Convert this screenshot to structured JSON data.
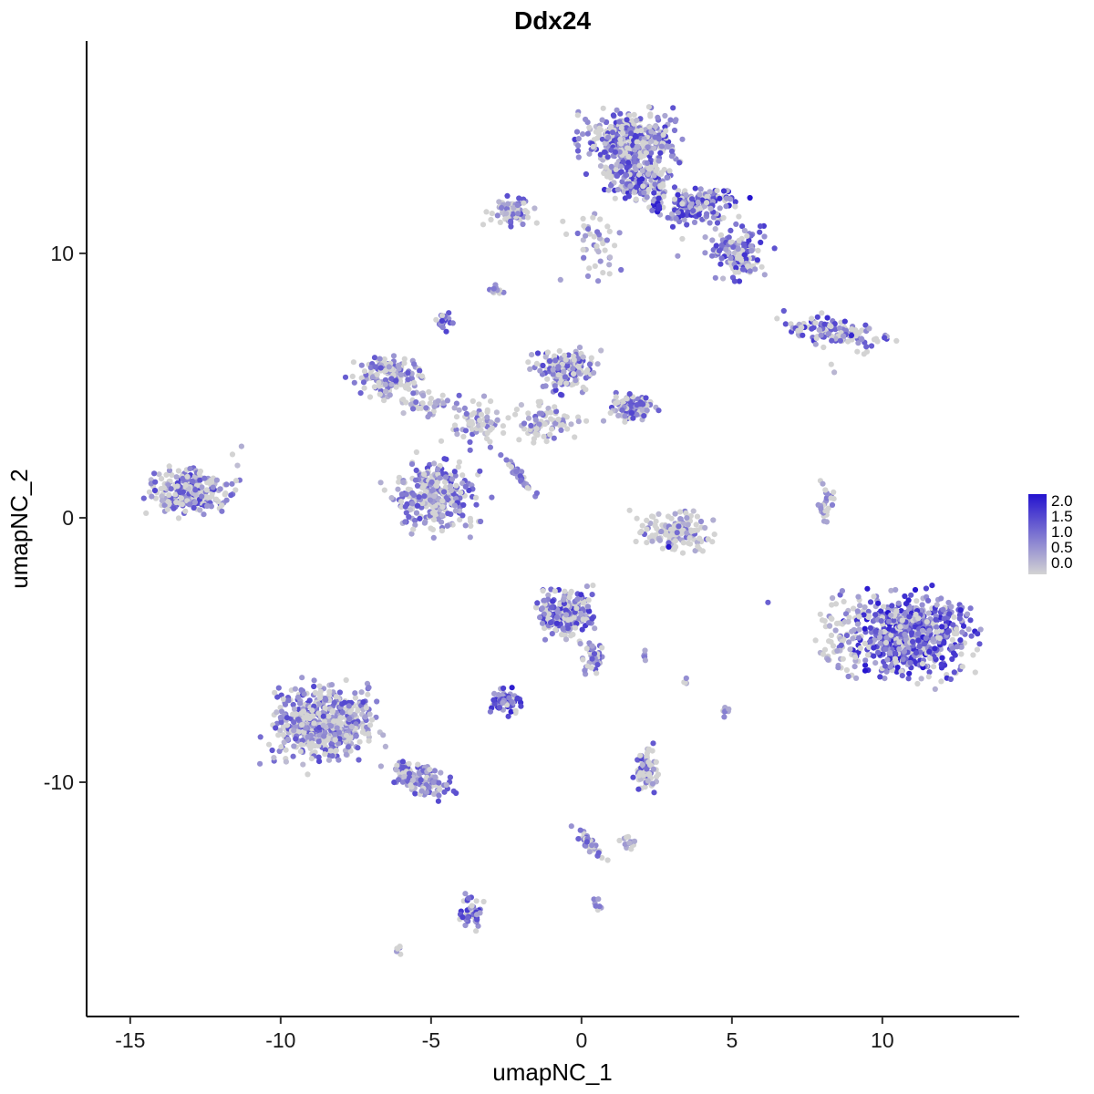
{
  "chart_data": {
    "type": "scatter",
    "title": "Ddx24",
    "xlabel": "umapNC_1",
    "ylabel": "umapNC_2",
    "xlim": [
      -16.45,
      14.55
    ],
    "ylim": [
      -18.86,
      18.03
    ],
    "grid": false,
    "x_ticks": [
      {
        "v": -15,
        "label": "-15"
      },
      {
        "v": -10,
        "label": "-10"
      },
      {
        "v": -5,
        "label": "-5"
      },
      {
        "v": 0,
        "label": "0"
      },
      {
        "v": 5,
        "label": "5"
      },
      {
        "v": 10,
        "label": "10"
      }
    ],
    "y_ticks": [
      {
        "v": 10,
        "label": "10"
      },
      {
        "v": 0,
        "label": "0"
      },
      {
        "v": -10,
        "label": "-10"
      }
    ],
    "legend": {
      "position": "right",
      "labels": [
        "2.0",
        "1.5",
        "1.0",
        "0.5",
        "0.0"
      ],
      "values": [
        2.0,
        1.5,
        1.0,
        0.5,
        0.0
      ]
    },
    "colors": {
      "low": "#D3D3D3",
      "high": "#2413CF"
    },
    "value_range": [
      0,
      2
    ],
    "point_radius": 3.1,
    "seed": 42,
    "clusters": [
      {
        "name": "top-main",
        "cx": 1.6,
        "cy": 14.2,
        "sx": 1.6,
        "sy": 1.15,
        "rot": 0,
        "n": 430,
        "p0": 0.35,
        "lo": 0.2,
        "hi": 1.6
      },
      {
        "name": "top-main-lower",
        "cx": 1.9,
        "cy": 12.7,
        "sx": 1.1,
        "sy": 0.75,
        "rot": 0,
        "n": 170,
        "p0": 0.3,
        "lo": 0.2,
        "hi": 1.8
      },
      {
        "name": "top-right-chain",
        "cx": 3.8,
        "cy": 11.8,
        "sx": 1.4,
        "sy": 0.75,
        "rot": 0,
        "n": 160,
        "p0": 0.25,
        "lo": 0.3,
        "hi": 1.9
      },
      {
        "name": "top-right-blob",
        "cx": 5.2,
        "cy": 10.1,
        "sx": 1.0,
        "sy": 1.0,
        "rot": 0,
        "n": 140,
        "p0": 0.3,
        "lo": 0.2,
        "hi": 1.7
      },
      {
        "name": "top-left-small",
        "cx": -2.3,
        "cy": 11.6,
        "sx": 0.8,
        "sy": 0.55,
        "rot": 0,
        "n": 70,
        "p0": 0.4,
        "lo": 0.2,
        "hi": 1.4
      },
      {
        "name": "top-center-sparse",
        "cx": 0.6,
        "cy": 10.3,
        "sx": 1.0,
        "sy": 1.2,
        "rot": 0,
        "n": 45,
        "p0": 0.45,
        "lo": 0.2,
        "hi": 1.2
      },
      {
        "name": "mid-top-tiny",
        "cx": -2.8,
        "cy": 8.6,
        "sx": 0.3,
        "sy": 0.3,
        "rot": 0,
        "n": 10,
        "p0": 0.4,
        "lo": 0.3,
        "hi": 1.0
      },
      {
        "name": "purple-knot",
        "cx": -4.6,
        "cy": 7.4,
        "sx": 0.3,
        "sy": 0.35,
        "rot": 0,
        "n": 26,
        "p0": 0.15,
        "lo": 0.5,
        "hi": 1.6
      },
      {
        "name": "left-mid",
        "cx": -6.4,
        "cy": 5.4,
        "sx": 1.2,
        "sy": 0.85,
        "rot": 0,
        "n": 150,
        "p0": 0.4,
        "lo": 0.2,
        "hi": 1.4
      },
      {
        "name": "left-mid-arm",
        "cx": -5.2,
        "cy": 4.3,
        "sx": 0.7,
        "sy": 0.5,
        "rot": 0,
        "n": 40,
        "p0": 0.45,
        "lo": 0.2,
        "hi": 1.2
      },
      {
        "name": "center-top",
        "cx": -0.6,
        "cy": 5.6,
        "sx": 1.0,
        "sy": 0.8,
        "rot": 0,
        "n": 170,
        "p0": 0.35,
        "lo": 0.2,
        "hi": 1.6
      },
      {
        "name": "center-top-right",
        "cx": 1.6,
        "cy": 4.2,
        "sx": 0.8,
        "sy": 0.5,
        "rot": 0,
        "n": 100,
        "p0": 0.35,
        "lo": 0.2,
        "hi": 1.5
      },
      {
        "name": "center-scatter-e",
        "cx": -1.2,
        "cy": 3.6,
        "sx": 1.2,
        "sy": 0.8,
        "rot": 0,
        "n": 80,
        "p0": 0.5,
        "lo": 0.2,
        "hi": 1.2
      },
      {
        "name": "center-scatter-w",
        "cx": -3.6,
        "cy": 3.7,
        "sx": 1.1,
        "sy": 0.9,
        "rot": 0,
        "n": 70,
        "p0": 0.5,
        "lo": 0.2,
        "hi": 1.2
      },
      {
        "name": "central-blob",
        "cx": -4.9,
        "cy": 0.8,
        "sx": 1.5,
        "sy": 1.4,
        "rot": 0,
        "n": 280,
        "p0": 0.4,
        "lo": 0.2,
        "hi": 1.5
      },
      {
        "name": "streak",
        "cx": -2.0,
        "cy": 1.5,
        "sx": 0.9,
        "sy": 0.12,
        "rot": -55,
        "n": 45,
        "p0": 0.2,
        "lo": 0.5,
        "hi": 1.3
      },
      {
        "name": "far-left",
        "cx": -13.0,
        "cy": 1.0,
        "sx": 1.5,
        "sy": 1.0,
        "rot": 0,
        "n": 240,
        "p0": 0.35,
        "lo": 0.2,
        "hi": 1.6
      },
      {
        "name": "center-right-arc",
        "cx": 3.0,
        "cy": -0.5,
        "sx": 1.3,
        "sy": 0.8,
        "rot": 0,
        "n": 140,
        "p0": 0.68,
        "lo": 0.2,
        "hi": 1.2
      },
      {
        "name": "right-tiny-vert",
        "cx": 8.1,
        "cy": 0.5,
        "sx": 0.25,
        "sy": 0.8,
        "rot": 0,
        "n": 28,
        "p0": 0.5,
        "lo": 0.3,
        "hi": 1.2
      },
      {
        "name": "right-horiz",
        "cx": 8.4,
        "cy": 7.0,
        "sx": 1.7,
        "sy": 0.55,
        "rot": -8,
        "n": 140,
        "p0": 0.45,
        "lo": 0.3,
        "hi": 1.8
      },
      {
        "name": "big-right",
        "cx": 10.9,
        "cy": -4.5,
        "sx": 2.0,
        "sy": 1.6,
        "rot": 0,
        "n": 650,
        "p0": 0.2,
        "lo": 0.3,
        "hi": 2.0
      },
      {
        "name": "big-right-fringe",
        "cx": 8.6,
        "cy": -4.3,
        "sx": 0.8,
        "sy": 1.6,
        "rot": 0,
        "n": 70,
        "p0": 0.55,
        "lo": 0.2,
        "hi": 1.2
      },
      {
        "name": "center-mid",
        "cx": -0.5,
        "cy": -3.6,
        "sx": 1.0,
        "sy": 1.0,
        "rot": 0,
        "n": 210,
        "p0": 0.3,
        "lo": 0.3,
        "hi": 1.7
      },
      {
        "name": "center-mid-tail",
        "cx": 0.4,
        "cy": -5.3,
        "sx": 0.4,
        "sy": 0.7,
        "rot": 0,
        "n": 40,
        "p0": 0.35,
        "lo": 0.2,
        "hi": 1.4
      },
      {
        "name": "small-dense",
        "cx": -2.5,
        "cy": -7.0,
        "sx": 0.5,
        "sy": 0.5,
        "rot": 0,
        "n": 65,
        "p0": 0.15,
        "lo": 0.4,
        "hi": 1.9
      },
      {
        "name": "bottom-left-main",
        "cx": -8.6,
        "cy": -7.8,
        "sx": 1.8,
        "sy": 1.5,
        "rot": 0,
        "n": 560,
        "p0": 0.35,
        "lo": 0.2,
        "hi": 1.5
      },
      {
        "name": "bottom-left-arm",
        "cx": -5.3,
        "cy": -9.9,
        "sx": 1.0,
        "sy": 0.6,
        "rot": -28,
        "n": 140,
        "p0": 0.35,
        "lo": 0.2,
        "hi": 1.5
      },
      {
        "name": "bottom-small-vert",
        "cx": 2.15,
        "cy": -9.5,
        "sx": 0.4,
        "sy": 0.9,
        "rot": 0,
        "n": 75,
        "p0": 0.45,
        "lo": 0.2,
        "hi": 1.5
      },
      {
        "name": "bottom-chain",
        "cx": 0.25,
        "cy": -12.3,
        "sx": 0.8,
        "sy": 0.18,
        "rot": -50,
        "n": 42,
        "p0": 0.4,
        "lo": 0.3,
        "hi": 1.3
      },
      {
        "name": "chain-offshoot",
        "cx": 1.6,
        "cy": -12.3,
        "sx": 0.35,
        "sy": 0.3,
        "rot": 0,
        "n": 16,
        "p0": 0.5,
        "lo": 0.2,
        "hi": 1.0
      },
      {
        "name": "bottom-knot",
        "cx": -3.65,
        "cy": -14.9,
        "sx": 0.4,
        "sy": 0.6,
        "rot": 0,
        "n": 48,
        "p0": 0.3,
        "lo": 0.3,
        "hi": 1.7
      },
      {
        "name": "bottom-tiny",
        "cx": -6.1,
        "cy": -16.3,
        "sx": 0.25,
        "sy": 0.2,
        "rot": 0,
        "n": 7,
        "p0": 0.5,
        "lo": 0.3,
        "hi": 0.9
      },
      {
        "name": "bottom-tiny2",
        "cx": 0.5,
        "cy": -14.6,
        "sx": 0.2,
        "sy": 0.3,
        "rot": 0,
        "n": 7,
        "p0": 0.3,
        "lo": 0.4,
        "hi": 1.2
      },
      {
        "name": "stray-right-low",
        "cx": 4.9,
        "cy": -7.4,
        "sx": 0.25,
        "sy": 0.3,
        "rot": 0,
        "n": 7,
        "p0": 0.4,
        "lo": 0.3,
        "hi": 1.2
      },
      {
        "name": "stray-mid",
        "cx": 3.55,
        "cy": -6.2,
        "sx": 0.2,
        "sy": 0.2,
        "rot": 0,
        "n": 4,
        "p0": 0.5,
        "lo": 0.3,
        "hi": 0.8
      },
      {
        "name": "pair-mid",
        "cx": 2.15,
        "cy": -5.2,
        "sx": 0.3,
        "sy": 0.2,
        "rot": 0,
        "n": 5,
        "p0": 0.4,
        "lo": 0.3,
        "hi": 1.0
      },
      {
        "name": "dark-streak",
        "cx": 2.55,
        "cy": 11.7,
        "sx": 0.07,
        "sy": 0.4,
        "rot": 0,
        "n": 10,
        "p0": 0.0,
        "lo": 1.4,
        "hi": 2.0
      }
    ],
    "extra_points": [
      {
        "x": 5.6,
        "y": 12.1,
        "v": 2.0
      },
      {
        "x": 2.9,
        "y": -1.1,
        "v": 2.0
      },
      {
        "x": 6.2,
        "y": -3.2,
        "v": 1.2
      },
      {
        "x": 8.3,
        "y": 5.8,
        "v": 0.0
      },
      {
        "x": 8.4,
        "y": 5.5,
        "v": 0.3
      },
      {
        "x": 3.2,
        "y": 9.9,
        "v": 0.6
      },
      {
        "x": 3.35,
        "y": 10.55,
        "v": 0.0
      },
      {
        "x": -0.7,
        "y": 9.0,
        "v": 0.5
      },
      {
        "x": -11.3,
        "y": 2.7,
        "v": 0.4
      },
      {
        "x": -11.6,
        "y": 2.4,
        "v": 0.0
      }
    ]
  }
}
